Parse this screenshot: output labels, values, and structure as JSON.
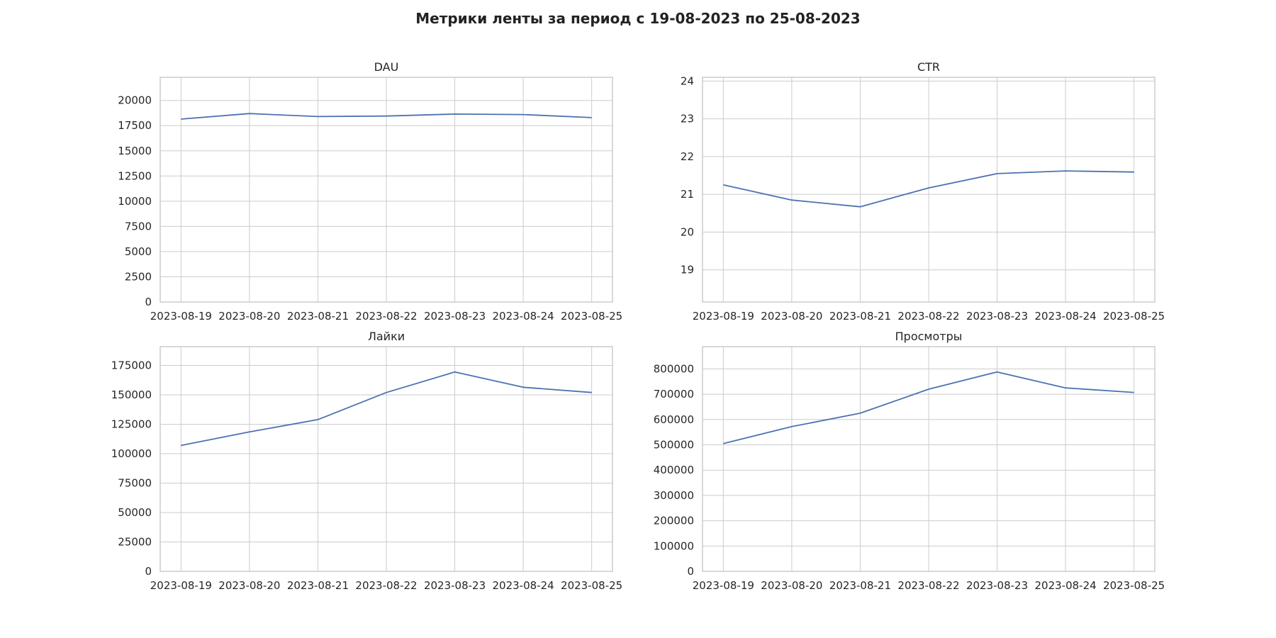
{
  "figure": {
    "title": "Метрики ленты за период с 19-08-2023 по 25-08-2023"
  },
  "colors": {
    "line": "#4c72b0",
    "grid": "#cccccc",
    "background": "#ffffff"
  },
  "chart_data": [
    {
      "type": "line",
      "title": "DAU",
      "x": [
        "2023-08-19",
        "2023-08-20",
        "2023-08-21",
        "2023-08-22",
        "2023-08-23",
        "2023-08-24",
        "2023-08-25"
      ],
      "values": [
        18150,
        18700,
        18400,
        18450,
        18650,
        18600,
        18300
      ],
      "ylim": [
        0,
        22300
      ],
      "yticks": [
        0,
        2500,
        5000,
        7500,
        10000,
        12500,
        15000,
        17500,
        20000
      ],
      "ytick_labels": [
        "0",
        "2500",
        "5000",
        "7500",
        "10000",
        "12500",
        "15000",
        "17500",
        "20000"
      ],
      "grid": true
    },
    {
      "type": "line",
      "title": "CTR",
      "x": [
        "2023-08-19",
        "2023-08-20",
        "2023-08-21",
        "2023-08-22",
        "2023-08-23",
        "2023-08-24",
        "2023-08-25"
      ],
      "values": [
        21.25,
        20.85,
        20.67,
        21.17,
        21.55,
        21.62,
        21.59
      ],
      "ylim": [
        18.15,
        24.1
      ],
      "yticks": [
        19,
        20,
        21,
        22,
        23,
        24
      ],
      "ytick_labels": [
        "19",
        "20",
        "21",
        "22",
        "23",
        "24"
      ],
      "grid": true
    },
    {
      "type": "line",
      "title": "Лайки",
      "x": [
        "2023-08-19",
        "2023-08-20",
        "2023-08-21",
        "2023-08-22",
        "2023-08-23",
        "2023-08-24",
        "2023-08-25"
      ],
      "values": [
        107000,
        118500,
        129000,
        152000,
        169500,
        156500,
        152000
      ],
      "ylim": [
        0,
        191000
      ],
      "yticks": [
        0,
        25000,
        50000,
        75000,
        100000,
        125000,
        150000,
        175000
      ],
      "ytick_labels": [
        "0",
        "25000",
        "50000",
        "75000",
        "100000",
        "125000",
        "150000",
        "175000"
      ],
      "grid": true
    },
    {
      "type": "line",
      "title": "Просмотры",
      "x": [
        "2023-08-19",
        "2023-08-20",
        "2023-08-21",
        "2023-08-22",
        "2023-08-23",
        "2023-08-24",
        "2023-08-25"
      ],
      "values": [
        505000,
        572000,
        625000,
        720000,
        788000,
        725000,
        707000
      ],
      "ylim": [
        0,
        888000
      ],
      "yticks": [
        0,
        100000,
        200000,
        300000,
        400000,
        500000,
        600000,
        700000,
        800000
      ],
      "ytick_labels": [
        "0",
        "100000",
        "200000",
        "300000",
        "400000",
        "500000",
        "600000",
        "700000",
        "800000"
      ],
      "grid": true
    }
  ]
}
